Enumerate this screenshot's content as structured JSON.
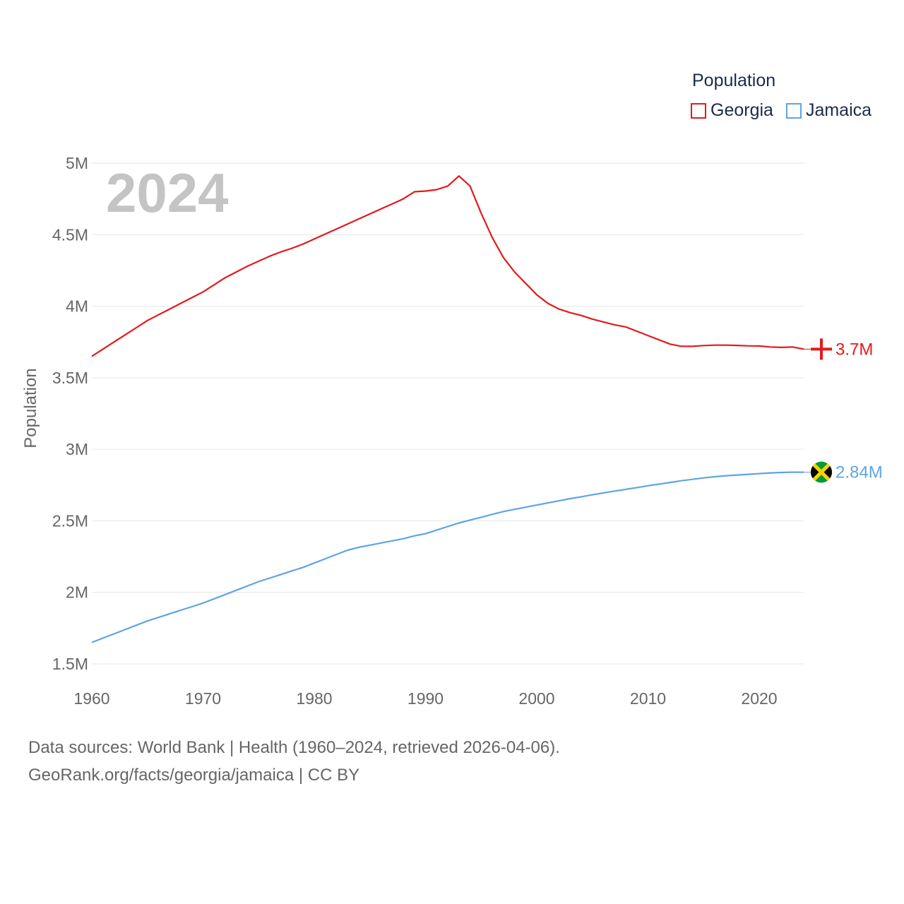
{
  "legend": {
    "title": "Population",
    "items": [
      {
        "label": "Georgia",
        "color": "#e31a1c"
      },
      {
        "label": "Jamaica",
        "color": "#5fa4e3"
      }
    ]
  },
  "footer": {
    "line1": "Data sources: World Bank | Health (1960–2024, retrieved 2026-04-06).",
    "line2": "GeoRank.org/facts/georgia/jamaica | CC BY"
  },
  "chart_data": {
    "type": "line",
    "year_label": "2024",
    "ylabel": "Population",
    "xlim": [
      1960,
      2024
    ],
    "ylim": [
      1500000,
      5000000
    ],
    "x_ticks": [
      1960,
      1970,
      1980,
      1990,
      2000,
      2010,
      2020
    ],
    "y_ticks": [
      {
        "value": 1500000,
        "label": "1.5M"
      },
      {
        "value": 2000000,
        "label": "2M"
      },
      {
        "value": 2500000,
        "label": "2.5M"
      },
      {
        "value": 3000000,
        "label": "3M"
      },
      {
        "value": 3500000,
        "label": "3.5M"
      },
      {
        "value": 4000000,
        "label": "4M"
      },
      {
        "value": 4500000,
        "label": "4.5M"
      },
      {
        "value": 5000000,
        "label": "5M"
      }
    ],
    "grid": true,
    "x": [
      1960,
      1961,
      1962,
      1963,
      1964,
      1965,
      1966,
      1967,
      1968,
      1969,
      1970,
      1971,
      1972,
      1973,
      1974,
      1975,
      1976,
      1977,
      1978,
      1979,
      1980,
      1981,
      1982,
      1983,
      1984,
      1985,
      1986,
      1987,
      1988,
      1989,
      1990,
      1991,
      1992,
      1993,
      1994,
      1995,
      1996,
      1997,
      1998,
      1999,
      2000,
      2001,
      2002,
      2003,
      2004,
      2005,
      2006,
      2007,
      2008,
      2009,
      2010,
      2011,
      2012,
      2013,
      2014,
      2015,
      2016,
      2017,
      2018,
      2019,
      2020,
      2021,
      2022,
      2023,
      2024
    ],
    "series": [
      {
        "name": "Georgia",
        "color": "#e31a1c",
        "end_label": "3.7M",
        "values": [
          3650000,
          3700000,
          3750000,
          3800000,
          3850000,
          3900000,
          3940000,
          3980000,
          4020000,
          4060000,
          4100000,
          4150000,
          4200000,
          4240000,
          4280000,
          4315000,
          4350000,
          4380000,
          4405000,
          4435000,
          4470000,
          4505000,
          4540000,
          4575000,
          4610000,
          4645000,
          4680000,
          4715000,
          4750000,
          4800000,
          4805000,
          4815000,
          4840000,
          4910000,
          4840000,
          4650000,
          4480000,
          4340000,
          4240000,
          4160000,
          4080000,
          4020000,
          3980000,
          3955000,
          3935000,
          3910000,
          3890000,
          3870000,
          3855000,
          3825000,
          3795000,
          3765000,
          3735000,
          3720000,
          3720000,
          3725000,
          3728000,
          3728000,
          3726000,
          3723000,
          3722000,
          3715000,
          3712000,
          3715000,
          3700000
        ]
      },
      {
        "name": "Jamaica",
        "color": "#5fa4e3",
        "end_label": "2.84M",
        "values": [
          1650000,
          1680000,
          1710000,
          1740000,
          1770000,
          1800000,
          1825000,
          1850000,
          1875000,
          1900000,
          1925000,
          1955000,
          1985000,
          2015000,
          2045000,
          2075000,
          2100000,
          2125000,
          2150000,
          2175000,
          2205000,
          2235000,
          2265000,
          2295000,
          2315000,
          2330000,
          2345000,
          2360000,
          2375000,
          2395000,
          2410000,
          2435000,
          2460000,
          2485000,
          2505000,
          2525000,
          2545000,
          2565000,
          2580000,
          2595000,
          2610000,
          2625000,
          2640000,
          2655000,
          2668000,
          2682000,
          2695000,
          2708000,
          2720000,
          2732000,
          2745000,
          2757000,
          2768000,
          2780000,
          2790000,
          2800000,
          2808000,
          2815000,
          2820000,
          2825000,
          2830000,
          2835000,
          2838000,
          2840000,
          2840000
        ]
      }
    ]
  }
}
